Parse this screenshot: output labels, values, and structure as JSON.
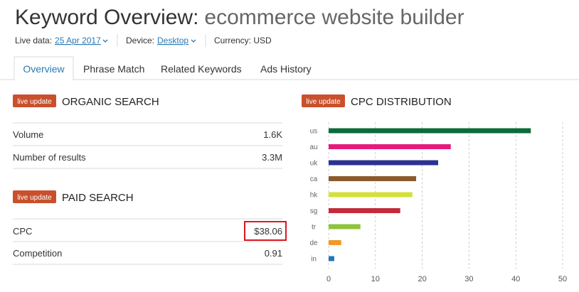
{
  "header": {
    "title": "Keyword Overview:",
    "keyword": "ecommerce website builder",
    "live_data_label": "Live data:",
    "live_data_value": "25 Apr 2017",
    "device_label": "Device:",
    "device_value": "Desktop",
    "currency": "Currency: USD"
  },
  "tabs": [
    "Overview",
    "Phrase Match",
    "Related Keywords",
    "Ads History"
  ],
  "organic_search": {
    "badge": "live update",
    "title": "ORGANIC SEARCH",
    "rows": [
      [
        "Volume",
        "1.6K"
      ],
      [
        "Number of results",
        "3.3M"
      ]
    ]
  },
  "paid_search": {
    "badge": "live update",
    "title": "PAID SEARCH",
    "rows": [
      [
        "CPC",
        "$38.06"
      ],
      [
        "Competition",
        "0.91"
      ]
    ]
  },
  "chart_data": {
    "type": "bar",
    "orientation": "horizontal",
    "badge": "live update",
    "title": "CPC DISTRIBUTION",
    "categories": [
      "us",
      "au",
      "uk",
      "ca",
      "hk",
      "sg",
      "tr",
      "de",
      "in"
    ],
    "values": [
      43.2,
      26.1,
      23.4,
      18.7,
      17.9,
      15.3,
      6.8,
      2.7,
      1.2
    ],
    "colors": [
      "#0b6b3a",
      "#e6197c",
      "#2b3290",
      "#8b5a2b",
      "#d4e03a",
      "#c42a3a",
      "#8cc43c",
      "#f2982a",
      "#1f77b4"
    ],
    "xlim": [
      0,
      50
    ],
    "xticks": [
      0,
      10,
      20,
      30,
      40,
      50
    ],
    "grid": true
  }
}
